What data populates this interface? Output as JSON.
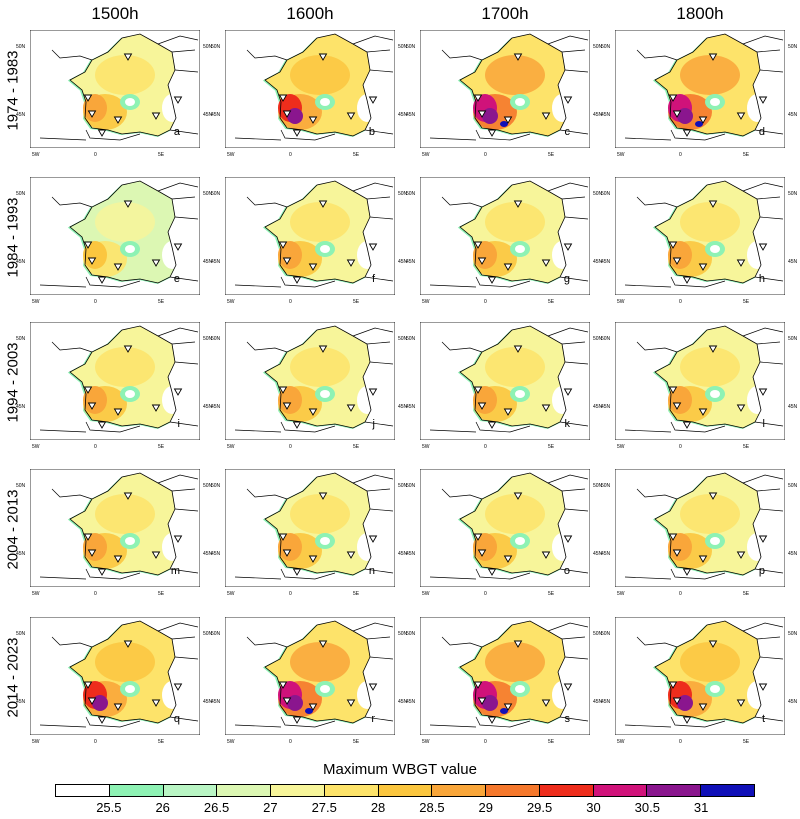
{
  "columns": [
    "1500h",
    "1600h",
    "1700h",
    "1800h"
  ],
  "rows": [
    "1974 - 1983",
    "1984 - 1993",
    "1994 - 2003",
    "2004 - 2013",
    "2014 - 2023"
  ],
  "letters": [
    "a",
    "b",
    "c",
    "d",
    "e",
    "f",
    "g",
    "h",
    "i",
    "j",
    "k",
    "l",
    "m",
    "n",
    "o",
    "p",
    "q",
    "r",
    "s",
    "t"
  ],
  "map_labels": {
    "lon": [
      "5W",
      "0",
      "5E"
    ],
    "lat": [
      "50N",
      "45N"
    ]
  },
  "colorbar": {
    "title": "Maximum WBGT value",
    "ticks": [
      "25.5",
      "26",
      "26.5",
      "27",
      "27.5",
      "28",
      "28.5",
      "29",
      "29.5",
      "30",
      "30.5",
      "31"
    ],
    "colors": [
      "#ffffff",
      "#8ef2b4",
      "#b9f5c4",
      "#dcf7b3",
      "#f7f59a",
      "#fde36a",
      "#fbc63f",
      "#f9a63a",
      "#f5782c",
      "#ee2d1c",
      "#d0127a",
      "#8a168e",
      "#1010b8"
    ]
  },
  "intensity": [
    [
      1,
      2,
      3,
      3
    ],
    [
      0,
      1,
      1,
      1
    ],
    [
      1,
      1,
      1,
      1
    ],
    [
      1,
      1,
      1,
      1
    ],
    [
      2,
      3,
      3,
      2
    ]
  ]
}
